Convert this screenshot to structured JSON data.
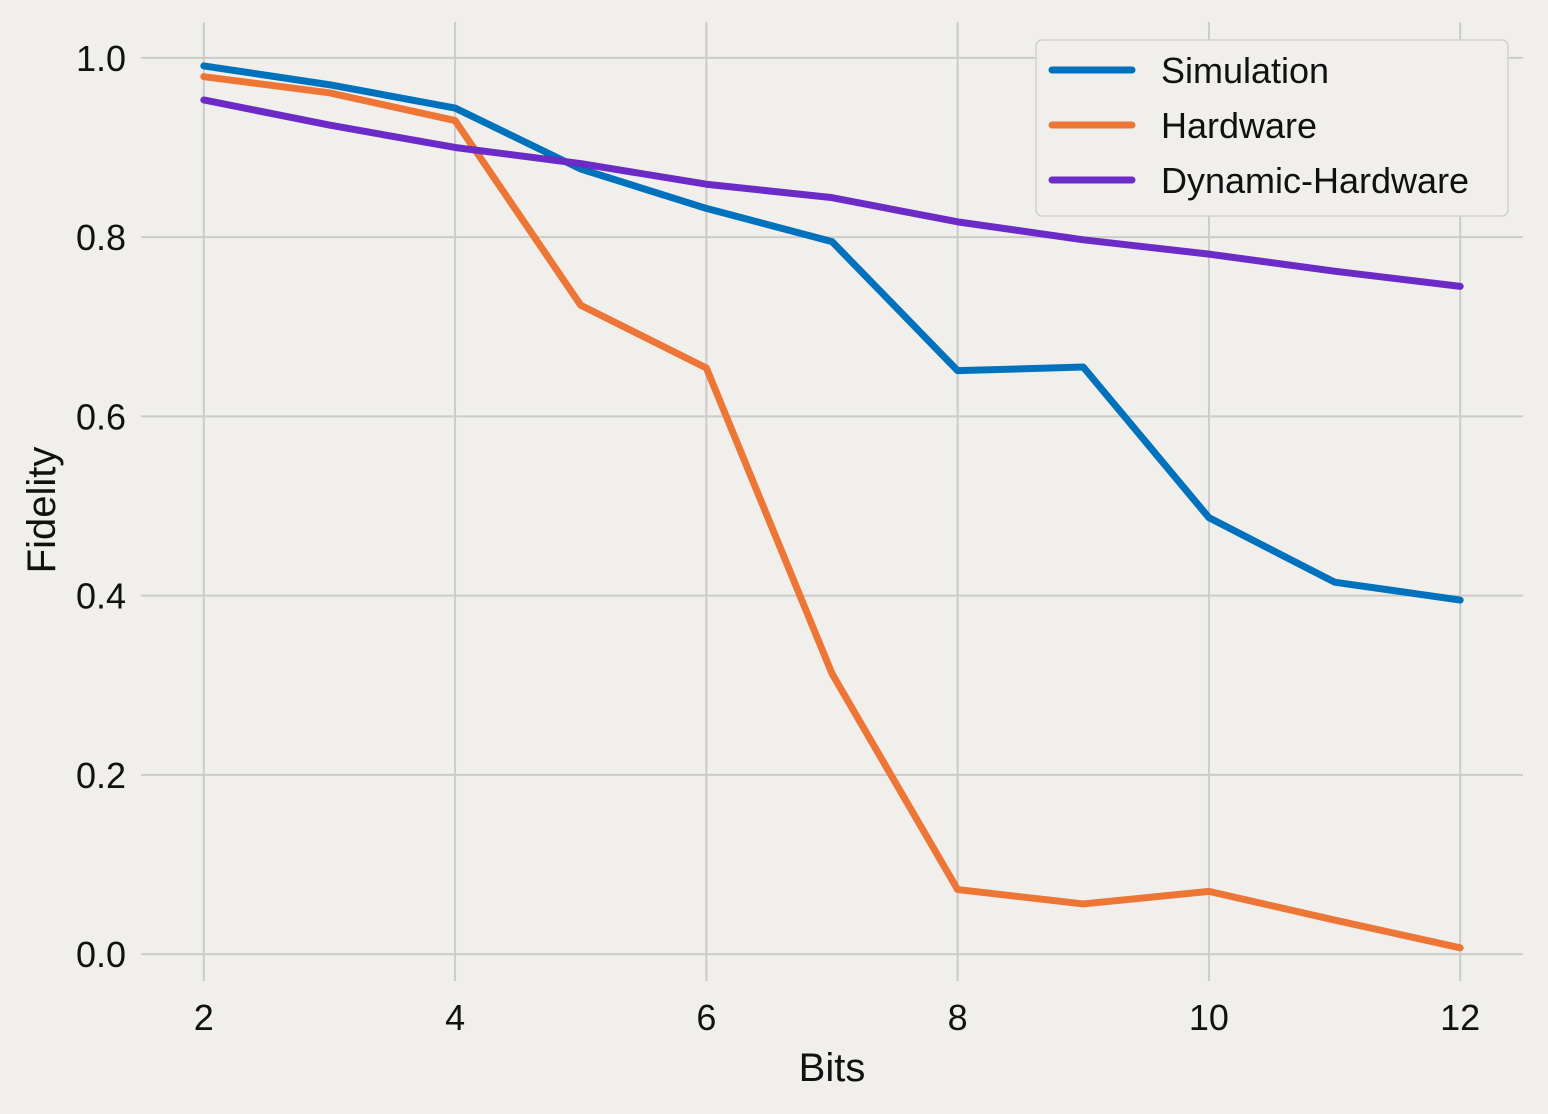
{
  "chart_data": {
    "type": "line",
    "title": "",
    "xlabel": "Bits",
    "ylabel": "Fidelity",
    "x": [
      2,
      3,
      4,
      5,
      6,
      7,
      8,
      9,
      10,
      11,
      12
    ],
    "xticks": [
      2,
      4,
      6,
      8,
      10,
      12
    ],
    "yticks": [
      0.0,
      0.2,
      0.4,
      0.6,
      0.8,
      1.0
    ],
    "xlim": [
      1.5,
      12.5
    ],
    "ylim": [
      -0.03,
      1.04
    ],
    "grid": true,
    "legend_position": "top-right",
    "series": [
      {
        "name": "Simulation",
        "color": "#0072bd",
        "values": [
          0.991,
          0.97,
          0.944,
          0.876,
          0.832,
          0.795,
          0.651,
          0.655,
          0.487,
          0.415,
          0.395
        ]
      },
      {
        "name": "Hardware",
        "color": "#ed7636",
        "values": [
          0.979,
          0.961,
          0.93,
          0.724,
          0.654,
          0.313,
          0.072,
          0.056,
          0.07,
          0.038,
          0.007
        ]
      },
      {
        "name": "Dynamic-Hardware",
        "color": "#6c2bc7",
        "values": [
          0.953,
          0.925,
          0.9,
          0.882,
          0.859,
          0.844,
          0.817,
          0.797,
          0.781,
          0.762,
          0.745
        ]
      }
    ]
  }
}
